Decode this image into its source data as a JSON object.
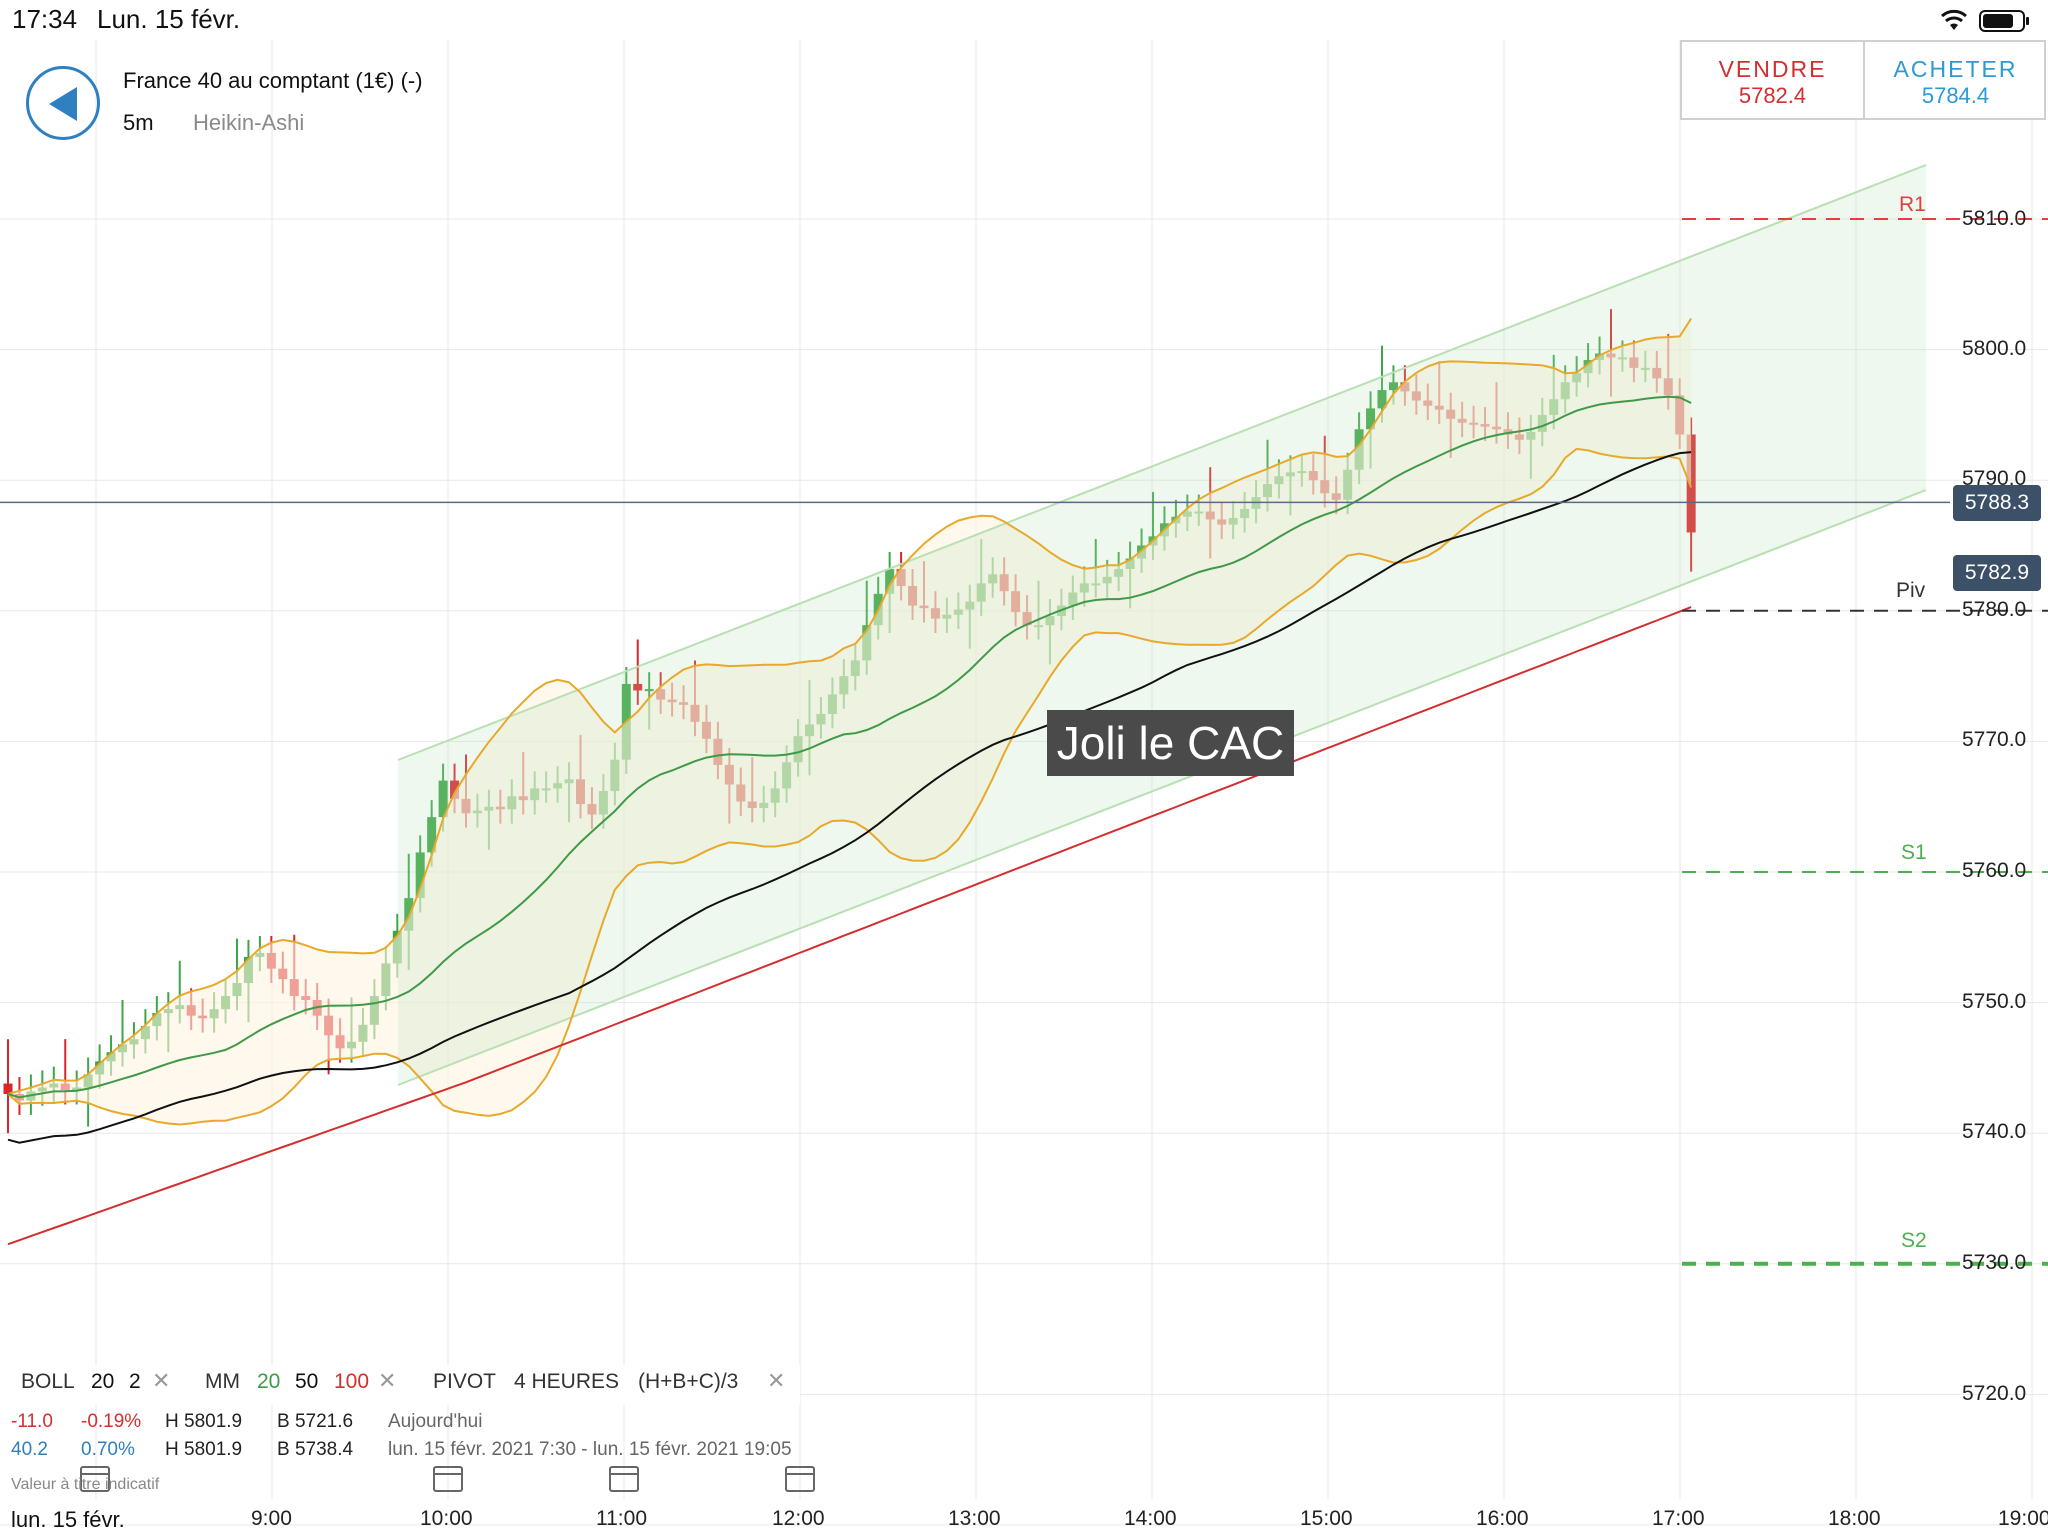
{
  "status_bar": {
    "time": "17:34",
    "date": "Lun. 15 févr.",
    "icons": [
      "wifi-icon",
      "battery-icon"
    ]
  },
  "instrument": {
    "title": "France 40 au comptant (1€) (-)",
    "timeframe": "5m",
    "chart_type": "Heikin-Ashi"
  },
  "trade": {
    "sell_label": "VENDRE",
    "sell_price": "5782.4",
    "buy_label": "ACHETER",
    "buy_price": "5784.4"
  },
  "annotation": "Joli le CAC",
  "price_tags": {
    "last": "5788.3",
    "bid": "5782.9"
  },
  "levels": {
    "r1": "R1",
    "piv": "Piv",
    "s1": "S1",
    "s2": "S2"
  },
  "indicators": {
    "boll": {
      "label": "BOLL",
      "period": "20",
      "dev": "2"
    },
    "mm": {
      "label": "MM",
      "p1": "20",
      "p2": "50",
      "p3": "100"
    },
    "pivot": {
      "label": "PIVOT",
      "period": "4 HEURES",
      "formula": "(H+B+C)/3"
    }
  },
  "info_rows": [
    {
      "change": "-11.0",
      "pct": "-0.19%",
      "high": "H 5801.9",
      "low": "B 5721.6",
      "period": "Aujourd'hui"
    },
    {
      "change": "40.2",
      "pct": "0.70%",
      "high": "H 5801.9",
      "low": "B 5738.4",
      "period": "lun. 15 févr. 2021 7:30 - lun. 15 févr. 2021 19:05"
    }
  ],
  "footnote": "Valeur à titre indicatif",
  "date_label": "lun. 15 févr.",
  "colors": {
    "bull": "#3fa648",
    "bear": "#d9262c",
    "boll": "#e8a92b",
    "ma20": "#3f9a47",
    "ma50": "#111111",
    "ma100": "#d32f2f",
    "channel": "#b8e0b3"
  },
  "chart_data": {
    "type": "candlestick",
    "y_ticks": [
      "5810.0",
      "5800.0",
      "5790.0",
      "5780.0",
      "5770.0",
      "5760.0",
      "5750.0",
      "5740.0",
      "5730.0",
      "5720.0"
    ],
    "x_ticks": [
      "9:00",
      "10:00",
      "11:00",
      "12:00",
      "13:00",
      "14:00",
      "15:00",
      "16:00",
      "17:00",
      "18:00",
      "19:00"
    ],
    "ylim": [
      5715,
      5822
    ],
    "levels": {
      "R1": 5810,
      "Piv": 5780,
      "S1": 5760,
      "S2": 5730
    },
    "last_price": 5788.3,
    "bid_price": 5782.9
  }
}
